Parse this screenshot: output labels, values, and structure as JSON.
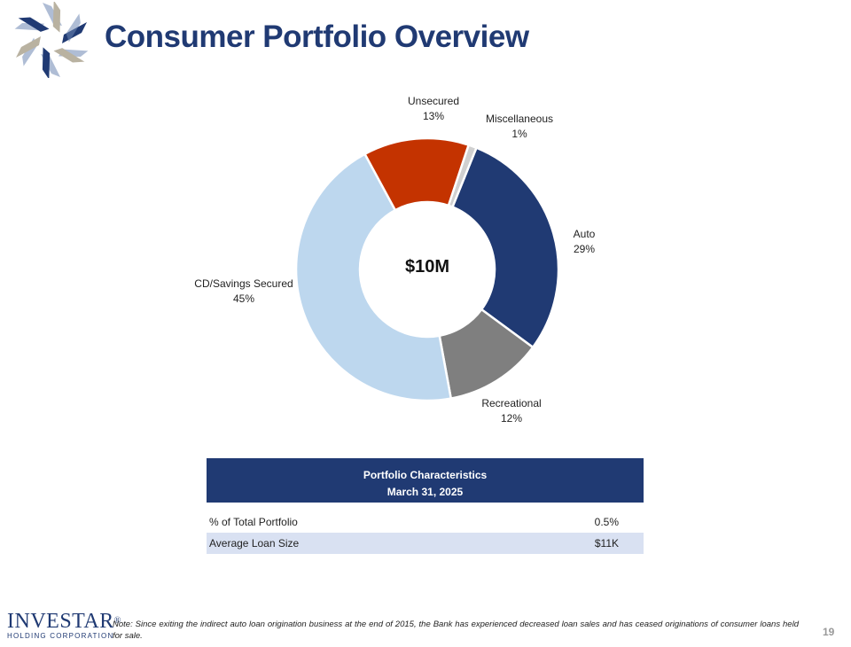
{
  "page": {
    "title": "Consumer Portfolio Overview",
    "page_number": "19",
    "note": "Note: Since exiting the indirect auto loan origination business at the end of 2015, the Bank has experienced decreased loan sales and has ceased originations of consumer loans held for sale."
  },
  "brand": {
    "name": "INVESTAR",
    "registered": "®",
    "subtitle": "HOLDING CORPORATION"
  },
  "colors": {
    "title": "#203a73",
    "auto": "#203a73",
    "recreational": "#7f7f7f",
    "cd_savings_secured": "#bdd7ee",
    "unsecured": "#c43300",
    "miscellaneous": "#d0d0d0",
    "table_header": "#203a73",
    "table_alt_row": "#d9e1f2"
  },
  "chart_data": {
    "type": "pie",
    "variant": "donut",
    "center_label": "$10M",
    "slices": [
      {
        "name": "Auto",
        "pct_label": "29%",
        "value": 29
      },
      {
        "name": "Recreational",
        "pct_label": "12%",
        "value": 12
      },
      {
        "name": "CD/Savings Secured",
        "pct_label": "45%",
        "value": 45
      },
      {
        "name": "Unsecured",
        "pct_label": "13%",
        "value": 13
      },
      {
        "name": "Miscellaneous",
        "pct_label": "1%",
        "value": 1
      }
    ]
  },
  "table": {
    "title": "Portfolio Characteristics",
    "date": "March 31, 2025",
    "rows": [
      {
        "label": "% of Total Portfolio",
        "value": "0.5%"
      },
      {
        "label": "Average Loan Size",
        "value": "$11K"
      }
    ]
  }
}
